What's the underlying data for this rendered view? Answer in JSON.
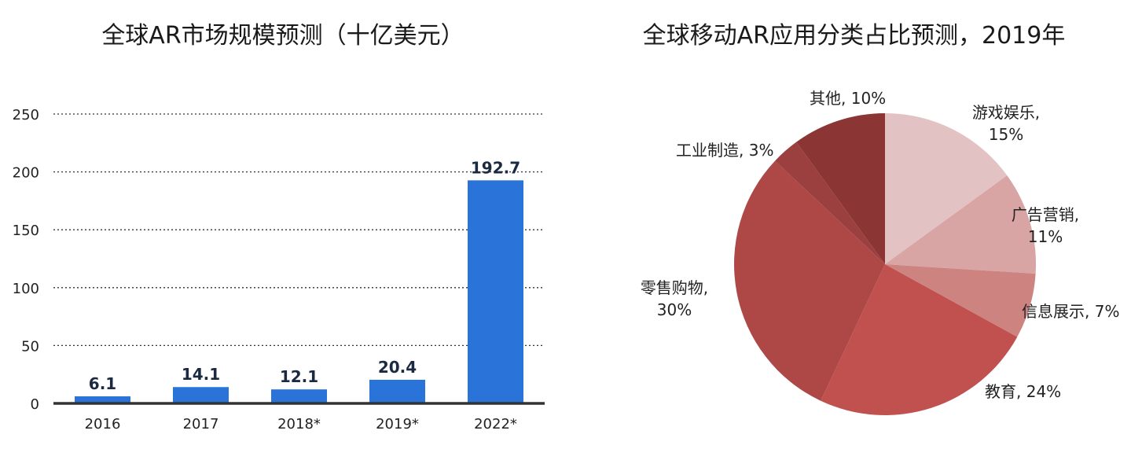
{
  "chart_data": [
    {
      "type": "bar",
      "title": "全球AR市场规模预测（十亿美元）",
      "categories": [
        "2016",
        "2017",
        "2018*",
        "2019*",
        "2022*"
      ],
      "values": [
        6.1,
        14.1,
        12.1,
        20.4,
        192.7
      ],
      "value_labels": [
        "6.1",
        "14.1",
        "12.1",
        "20.4",
        "192.7"
      ],
      "y_ticks": [
        "0",
        "50",
        "100",
        "150",
        "200",
        "250"
      ],
      "ylim": [
        0,
        250
      ],
      "grid": "dotted horizontal",
      "bar_color": "#2a74d9",
      "xlabel": "",
      "ylabel": ""
    },
    {
      "type": "pie",
      "title": "全球移动AR应用分类占比预测，2019年",
      "slices": [
        {
          "label": "游戏娱乐,",
          "pct": "15%",
          "value": 15,
          "color": "#e3c2c3"
        },
        {
          "label": "广告营销,",
          "pct": "11%",
          "value": 11,
          "color": "#d9a4a4"
        },
        {
          "label": "信息展示, 7%",
          "pct": "",
          "value": 7,
          "color": "#cd8480"
        },
        {
          "label": "教育, 24%",
          "pct": "",
          "value": 24,
          "color": "#c0514e"
        },
        {
          "label": "零售购物,",
          "pct": "30%",
          "value": 30,
          "color": "#ae4846"
        },
        {
          "label": "工业制造, 3%",
          "pct": "",
          "value": 3,
          "color": "#9c3f3f"
        },
        {
          "label": "其他, 10%",
          "pct": "",
          "value": 10,
          "color": "#8b3535"
        }
      ]
    }
  ]
}
